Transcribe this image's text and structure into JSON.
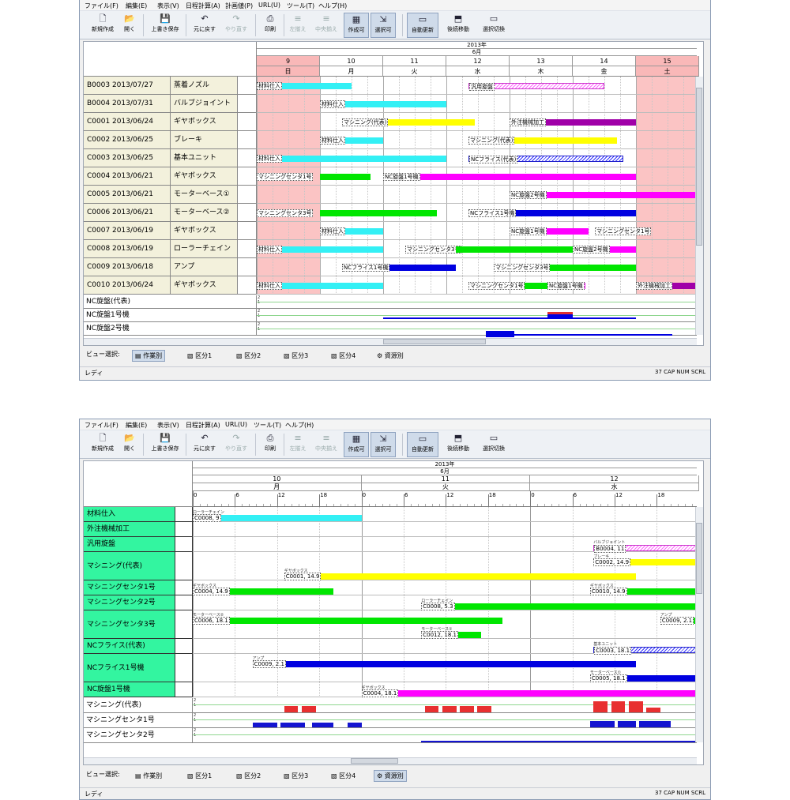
{
  "menu": [
    "ファイル(F)",
    "編集(E)",
    "表示(V)",
    "日程計算(A)",
    "計画値(P)",
    "URL(U)",
    "ツール(T)",
    "ヘルプ(H)"
  ],
  "toolbar": [
    {
      "label": "新規作成",
      "icon": "new-document-icon"
    },
    {
      "label": "開く",
      "icon": "folder-open-icon"
    },
    {
      "label": "上書き保存",
      "icon": "save-icon"
    },
    {
      "label": "元に戻す",
      "icon": "undo-icon"
    },
    {
      "label": "やり直す",
      "icon": "redo-icon"
    },
    {
      "label": "印刷",
      "icon": "print-icon"
    },
    {
      "label": "左揃え",
      "icon": "align-left-icon"
    },
    {
      "label": "中央揃え",
      "icon": "align-center-icon"
    },
    {
      "label": "作成可",
      "icon": "create-icon"
    },
    {
      "label": "選択可",
      "icon": "select-icon"
    },
    {
      "label": "自動更新",
      "icon": "auto-update-icon"
    },
    {
      "label": "後続移動",
      "icon": "move-successor-icon"
    },
    {
      "label": "選択切換",
      "icon": "switch-selection-icon"
    }
  ],
  "view1": {
    "year": "2013年",
    "month": "6月",
    "days": [
      {
        "d": "9",
        "w": "日",
        "weekend": true
      },
      {
        "d": "10",
        "w": "月"
      },
      {
        "d": "11",
        "w": "火"
      },
      {
        "d": "12",
        "w": "水"
      },
      {
        "d": "13",
        "w": "木"
      },
      {
        "d": "14",
        "w": "金"
      },
      {
        "d": "15",
        "w": "土",
        "weekend": true
      }
    ],
    "rows": [
      {
        "id": "B0003 2013/07/27",
        "name": "蒸着ノズル",
        "bars": [
          {
            "s": 0,
            "e": 1.5,
            "c": "#33f0f5",
            "t": "材料仕入"
          },
          {
            "s": 3.35,
            "e": 5.5,
            "c": "hatch-m",
            "t": "汎用旋盤"
          }
        ]
      },
      {
        "id": "B0004 2013/07/31",
        "name": "バルブジョイント",
        "bars": [
          {
            "s": 1,
            "e": 3,
            "c": "#33f0f5",
            "t": "材料仕入"
          }
        ]
      },
      {
        "id": "C0001 2013/06/24",
        "name": "ギヤボックス",
        "bars": [
          {
            "s": 1.35,
            "e": 3.45,
            "c": "#ffff00",
            "t": "マシニング(代表)"
          },
          {
            "s": 4,
            "e": 6,
            "c": "#a000a8",
            "t": "外注機械加工"
          }
        ]
      },
      {
        "id": "C0002 2013/06/25",
        "name": "ブレーキ",
        "bars": [
          {
            "s": 1,
            "e": 2,
            "c": "#33f0f5",
            "t": "材料仕入"
          },
          {
            "s": 3.35,
            "e": 5.7,
            "c": "#ffff00",
            "t": "マシニング(代表)"
          }
        ]
      },
      {
        "id": "C0003 2013/06/25",
        "name": "基本ユニット",
        "bars": [
          {
            "s": 0,
            "e": 3,
            "c": "#33f0f5",
            "t": "材料仕入"
          },
          {
            "s": 3.35,
            "e": 5.8,
            "c": "hatch-b",
            "t": "NCフライス(代表)"
          }
        ]
      },
      {
        "id": "C0004 2013/06/21",
        "name": "ギヤボックス",
        "bars": [
          {
            "s": 0,
            "e": 0.8,
            "c": "#00e600",
            "t": "マシニングセンタ1号"
          },
          {
            "s": 1,
            "e": 1.8,
            "c": "#00e600",
            "t": ""
          },
          {
            "s": 2,
            "e": 6,
            "c": "#ff00ff",
            "t": "NC旋盤1号機"
          }
        ]
      },
      {
        "id": "C0005 2013/06/21",
        "name": "モーターベース①",
        "bars": [
          {
            "s": 4,
            "e": 7,
            "c": "#ff00ff",
            "t": "NC旋盤2号機"
          }
        ]
      },
      {
        "id": "C0006 2013/06/21",
        "name": "モーターベース②",
        "bars": [
          {
            "s": 0,
            "e": 0.8,
            "c": "#00e600",
            "t": "マシニングセンタ3号"
          },
          {
            "s": 1,
            "e": 2.85,
            "c": "#00e600",
            "t": ""
          },
          {
            "s": 3.35,
            "e": 6,
            "c": "#0000e0",
            "t": "NCフライス1号機"
          }
        ]
      },
      {
        "id": "C0007 2013/06/19",
        "name": "ギヤボックス",
        "bars": [
          {
            "s": 1,
            "e": 2,
            "c": "#33f0f5",
            "t": "材料仕入"
          },
          {
            "s": 4,
            "e": 5.25,
            "c": "#ff00ff",
            "t": "NC旋盤1号機"
          },
          {
            "s": 5.35,
            "e": 6,
            "c": "#00e600",
            "t": "マシニングセンタ1号"
          }
        ]
      },
      {
        "id": "C0008 2013/06/19",
        "name": "ローラーチェイン",
        "bars": [
          {
            "s": 0,
            "e": 2,
            "c": "#33f0f5",
            "t": "材料仕入"
          },
          {
            "s": 2.35,
            "e": 3.15,
            "c": "#00e600",
            "t": "マシニングセンタ3号"
          },
          {
            "s": 3.15,
            "e": 5,
            "c": "#00e600",
            "t": ""
          },
          {
            "s": 5,
            "e": 6,
            "c": "#ff00ff",
            "t": "NC旋盤2号機"
          }
        ]
      },
      {
        "id": "C0009 2013/06/18",
        "name": "アンプ",
        "bars": [
          {
            "s": 1.35,
            "e": 3.15,
            "c": "#0000e0",
            "t": "NCフライス1号機"
          },
          {
            "s": 3.75,
            "e": 6,
            "c": "#00e600",
            "t": "マシニングセンタ3号"
          }
        ]
      },
      {
        "id": "C0010 2013/06/24",
        "name": "ギヤボックス",
        "bars": [
          {
            "s": 0,
            "e": 2,
            "c": "#33f0f5",
            "t": "材料仕入"
          },
          {
            "s": 3.35,
            "e": 4.6,
            "c": "#00e600",
            "t": "マシニングセンタ1号"
          },
          {
            "s": 4.6,
            "e": 5.2,
            "c": "#ff00ff",
            "t": "NC旋盤1号機"
          },
          {
            "s": 6,
            "e": 7,
            "c": "#a000a8",
            "t": "外注機械加工"
          }
        ]
      }
    ],
    "loads": [
      "NC旋盤(代表)",
      "NC旋盤1号機",
      "NC旋盤2号機"
    ]
  },
  "view2": {
    "year": "2013年",
    "month": "6月",
    "days": [
      {
        "d": "10",
        "w": "月"
      },
      {
        "d": "11",
        "w": "火"
      },
      {
        "d": "12",
        "w": "水"
      }
    ],
    "hours": [
      "0",
      "6",
      "12",
      "18"
    ],
    "resources": [
      {
        "name": "材料仕入",
        "tall": false,
        "bars": [
          {
            "s": 0,
            "e": 24,
            "c": "#33f0f5",
            "t": "C0008, 9",
            "n": "ローラーチェイン"
          }
        ]
      },
      {
        "name": "外注機械加工",
        "tall": false,
        "bars": []
      },
      {
        "name": "汎用旋盤",
        "tall": false,
        "bars": [
          {
            "s": 57,
            "e": 72,
            "c": "hatch-m",
            "t": "B0004, 11",
            "n": "バルブジョイント"
          }
        ]
      },
      {
        "name": "マシニング(代表)",
        "tall": true,
        "bars": [
          {
            "s": 57,
            "e": 72,
            "c": "#ffff00",
            "t": "C0002, 14.9",
            "n": "ブレーキ",
            "lane": 0
          },
          {
            "s": 13,
            "e": 63,
            "c": "#ffff00",
            "t": "C0001, 14.9",
            "n": "ギヤボックス",
            "lane": 1
          }
        ]
      },
      {
        "name": "マシニングセンタ1号",
        "tall": false,
        "bars": [
          {
            "s": 0,
            "e": 20,
            "c": "#00e600",
            "t": "C0004, 14.9",
            "n": "ギヤボックス"
          },
          {
            "s": 56.5,
            "e": 72,
            "c": "#00e600",
            "t": "C0010, 14.9",
            "n": "ギヤボックス"
          }
        ]
      },
      {
        "name": "マシニングセンタ2号",
        "tall": false,
        "bars": [
          {
            "s": 32.5,
            "e": 72,
            "c": "#00e600",
            "t": "C0008, 5.3",
            "n": "ローラーチェイン"
          }
        ]
      },
      {
        "name": "マシニングセンタ3号",
        "tall": true,
        "bars": [
          {
            "s": 0,
            "e": 44,
            "c": "#00e600",
            "t": "C0006, 18.1",
            "n": "モーターベース②",
            "lane": 0
          },
          {
            "s": 66.5,
            "e": 72,
            "c": "#00e600",
            "t": "C0009, 2.1",
            "n": "アンプ",
            "lane": 0
          },
          {
            "s": 32.5,
            "e": 41,
            "c": "#00e600",
            "t": "C0012, 18.1",
            "n": "モーターベース①",
            "lane": 1
          }
        ]
      },
      {
        "name": "NCフライス(代表)",
        "tall": false,
        "bars": [
          {
            "s": 57,
            "e": 72,
            "c": "hatch-b",
            "t": "C0003, 18.1",
            "n": "基本ユニット"
          }
        ]
      },
      {
        "name": "NCフライス1号機",
        "tall": true,
        "bars": [
          {
            "s": 8.5,
            "e": 63,
            "c": "#0000e0",
            "t": "C0009, 2.1",
            "n": "アンプ",
            "lane": 0
          },
          {
            "s": 56.5,
            "e": 72,
            "c": "#0000e0",
            "t": "C0005, 18.1",
            "n": "モーターベース①",
            "lane": 1
          }
        ]
      },
      {
        "name": "NC旋盤1号機",
        "tall": false,
        "bars": [
          {
            "s": 24,
            "e": 72,
            "c": "#ff00ff",
            "t": "C0004, 18.1",
            "n": "ギヤボックス"
          }
        ]
      }
    ],
    "loads": [
      "マシニング(代表)",
      "マシニングセンタ1号",
      "マシニングセンタ2号"
    ]
  },
  "view_tabs": {
    "label": "ビュー選択:",
    "items": [
      "作業別",
      "区分1",
      "区分2",
      "区分3",
      "区分4",
      "資源別"
    ]
  },
  "status": {
    "left": "レディ",
    "right": "37 CAP NUM SCRL"
  }
}
